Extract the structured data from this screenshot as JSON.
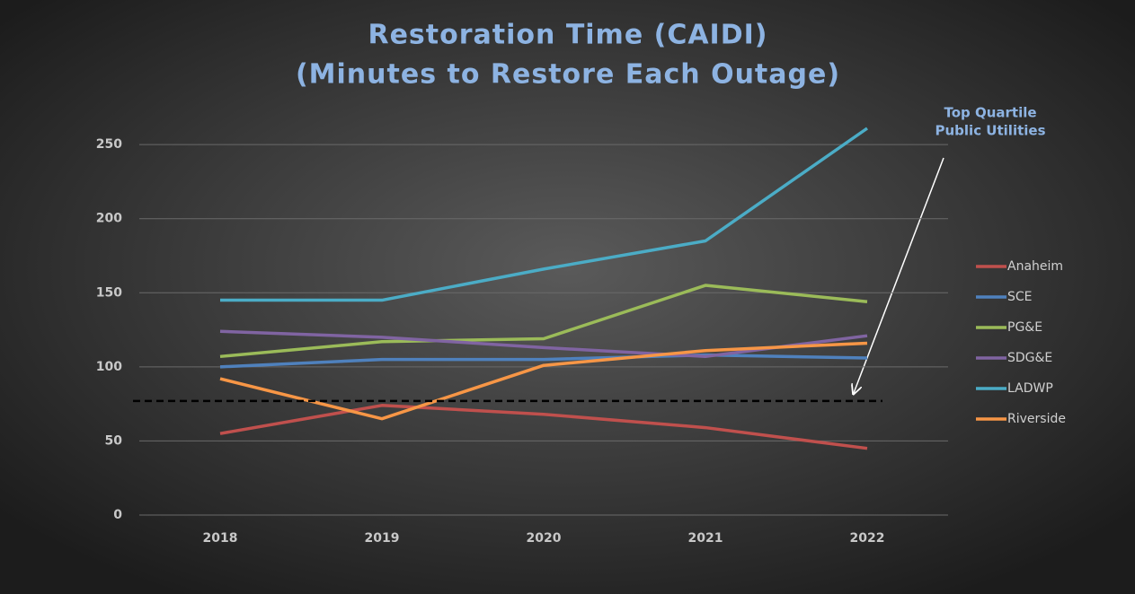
{
  "chart_data": {
    "type": "line",
    "title": "Restoration Time (CAIDI)",
    "subtitle": "(Minutes to Restore Each Outage)",
    "annotation": [
      "Top Quartile",
      "Public Utilities"
    ],
    "reference_value": 77,
    "categories": [
      "2018",
      "2019",
      "2020",
      "2021",
      "2022"
    ],
    "series": [
      {
        "name": "Anaheim",
        "color": "#c0504d",
        "values": [
          55,
          74,
          68,
          59,
          45
        ]
      },
      {
        "name": "SCE",
        "color": "#4f81bd",
        "values": [
          100,
          105,
          105,
          108,
          106
        ]
      },
      {
        "name": "PG&E",
        "color": "#9bbb59",
        "values": [
          107,
          117,
          119,
          155,
          144
        ]
      },
      {
        "name": "SDG&E",
        "color": "#8064a2",
        "values": [
          124,
          120,
          113,
          107,
          121
        ]
      },
      {
        "name": "LADWP",
        "color": "#4bacc6",
        "values": [
          145,
          145,
          166,
          185,
          261
        ]
      },
      {
        "name": "Riverside",
        "color": "#f79646",
        "values": [
          92,
          65,
          101,
          111,
          116
        ]
      }
    ],
    "ylim": [
      0,
      261
    ],
    "yticks": [
      0,
      50,
      100,
      150,
      200,
      250
    ],
    "grid": true,
    "legend": "right"
  }
}
